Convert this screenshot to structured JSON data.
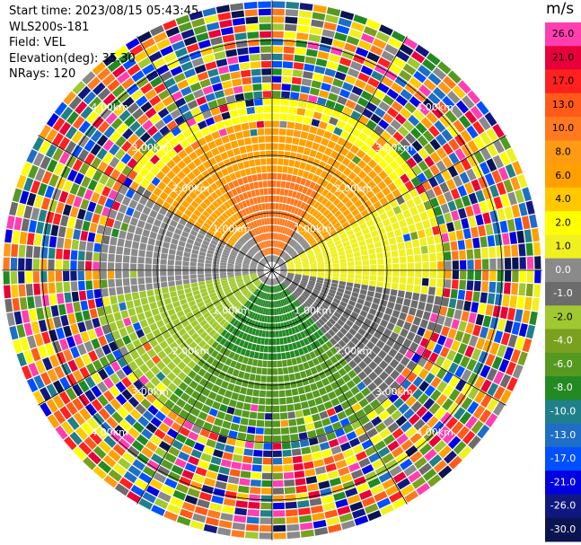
{
  "header": {
    "start_time": "Start time: 2023/08/15 05:43:45",
    "instrument": "WLS200s-181",
    "field": "Field: VEL",
    "elevation": "Elevation(deg): 35.30",
    "nrays": "NRays: 120"
  },
  "chart_data": {
    "type": "heatmap",
    "projection": "ppi-polar",
    "field": "VEL",
    "unit": "m/s",
    "nrays": 120,
    "elevation_deg": 35.3,
    "range_rings_km": [
      1.0,
      2.0,
      3.0,
      4.0
    ],
    "ring_label_texts": [
      "1.00km",
      "2.00km",
      "3.00km",
      "4.00km"
    ],
    "max_range_km": 4.7,
    "azimuth_lines_deg": [
      0,
      30,
      60,
      90,
      120,
      150,
      180,
      210,
      240,
      270,
      300,
      330
    ],
    "colorbar": {
      "label": "m/s",
      "tick_labels": [
        "26.0",
        "21.0",
        "17.0",
        "13.0",
        "10.0",
        "8.0",
        "6.0",
        "4.0",
        "2.0",
        "1.0",
        "0.0",
        "-1.0",
        "-2.0",
        "-4.0",
        "-6.0",
        "-8.0",
        "-10.0",
        "-13.0",
        "-17.0",
        "-21.0",
        "-26.0",
        "-30.0"
      ],
      "colors": [
        "#ff3fb0",
        "#e8003a",
        "#ff2020",
        "#ff5a1a",
        "#ff7a1e",
        "#ff9a14",
        "#ffa000",
        "#ffc800",
        "#ffff00",
        "#f0f020",
        "#8a8a8a",
        "#6c6c6c",
        "#a0c830",
        "#7aa020",
        "#559a20",
        "#238a23",
        "#20808a",
        "#1e6ec8",
        "#0050ff",
        "#0000e0",
        "#101880",
        "#0a1450"
      ]
    },
    "regimes": [
      {
        "description": "clean inner region (range < 3 km)",
        "range_km": [
          0,
          3.0
        ]
      },
      {
        "description": "noisy outer region",
        "range_km": [
          3.0,
          4.7
        ]
      }
    ],
    "sector_values": [
      {
        "azimuth_deg": [
          330,
          30
        ],
        "range_km": [
          0.2,
          1.6
        ],
        "value": 10.0
      },
      {
        "azimuth_deg": [
          300,
          60
        ],
        "range_km": [
          0.8,
          2.6
        ],
        "value": 6.0
      },
      {
        "azimuth_deg": [
          300,
          60
        ],
        "range_km": [
          1.8,
          3.0
        ],
        "value": 2.0
      },
      {
        "azimuth_deg": [
          60,
          100
        ],
        "range_km": [
          0.2,
          3.0
        ],
        "value": 1.0
      },
      {
        "azimuth_deg": [
          260,
          300
        ],
        "range_km": [
          0.2,
          3.0
        ],
        "value": 0.0
      },
      {
        "azimuth_deg": [
          100,
          140
        ],
        "range_km": [
          0.2,
          3.0
        ],
        "value": -1.0
      },
      {
        "azimuth_deg": [
          220,
          260
        ],
        "range_km": [
          0.2,
          3.0
        ],
        "value": -2.0
      },
      {
        "azimuth_deg": [
          140,
          220
        ],
        "range_km": [
          0.2,
          1.5
        ],
        "value": -8.0
      },
      {
        "azimuth_deg": [
          140,
          220
        ],
        "range_km": [
          1.5,
          3.0
        ],
        "value": -6.0
      }
    ]
  }
}
